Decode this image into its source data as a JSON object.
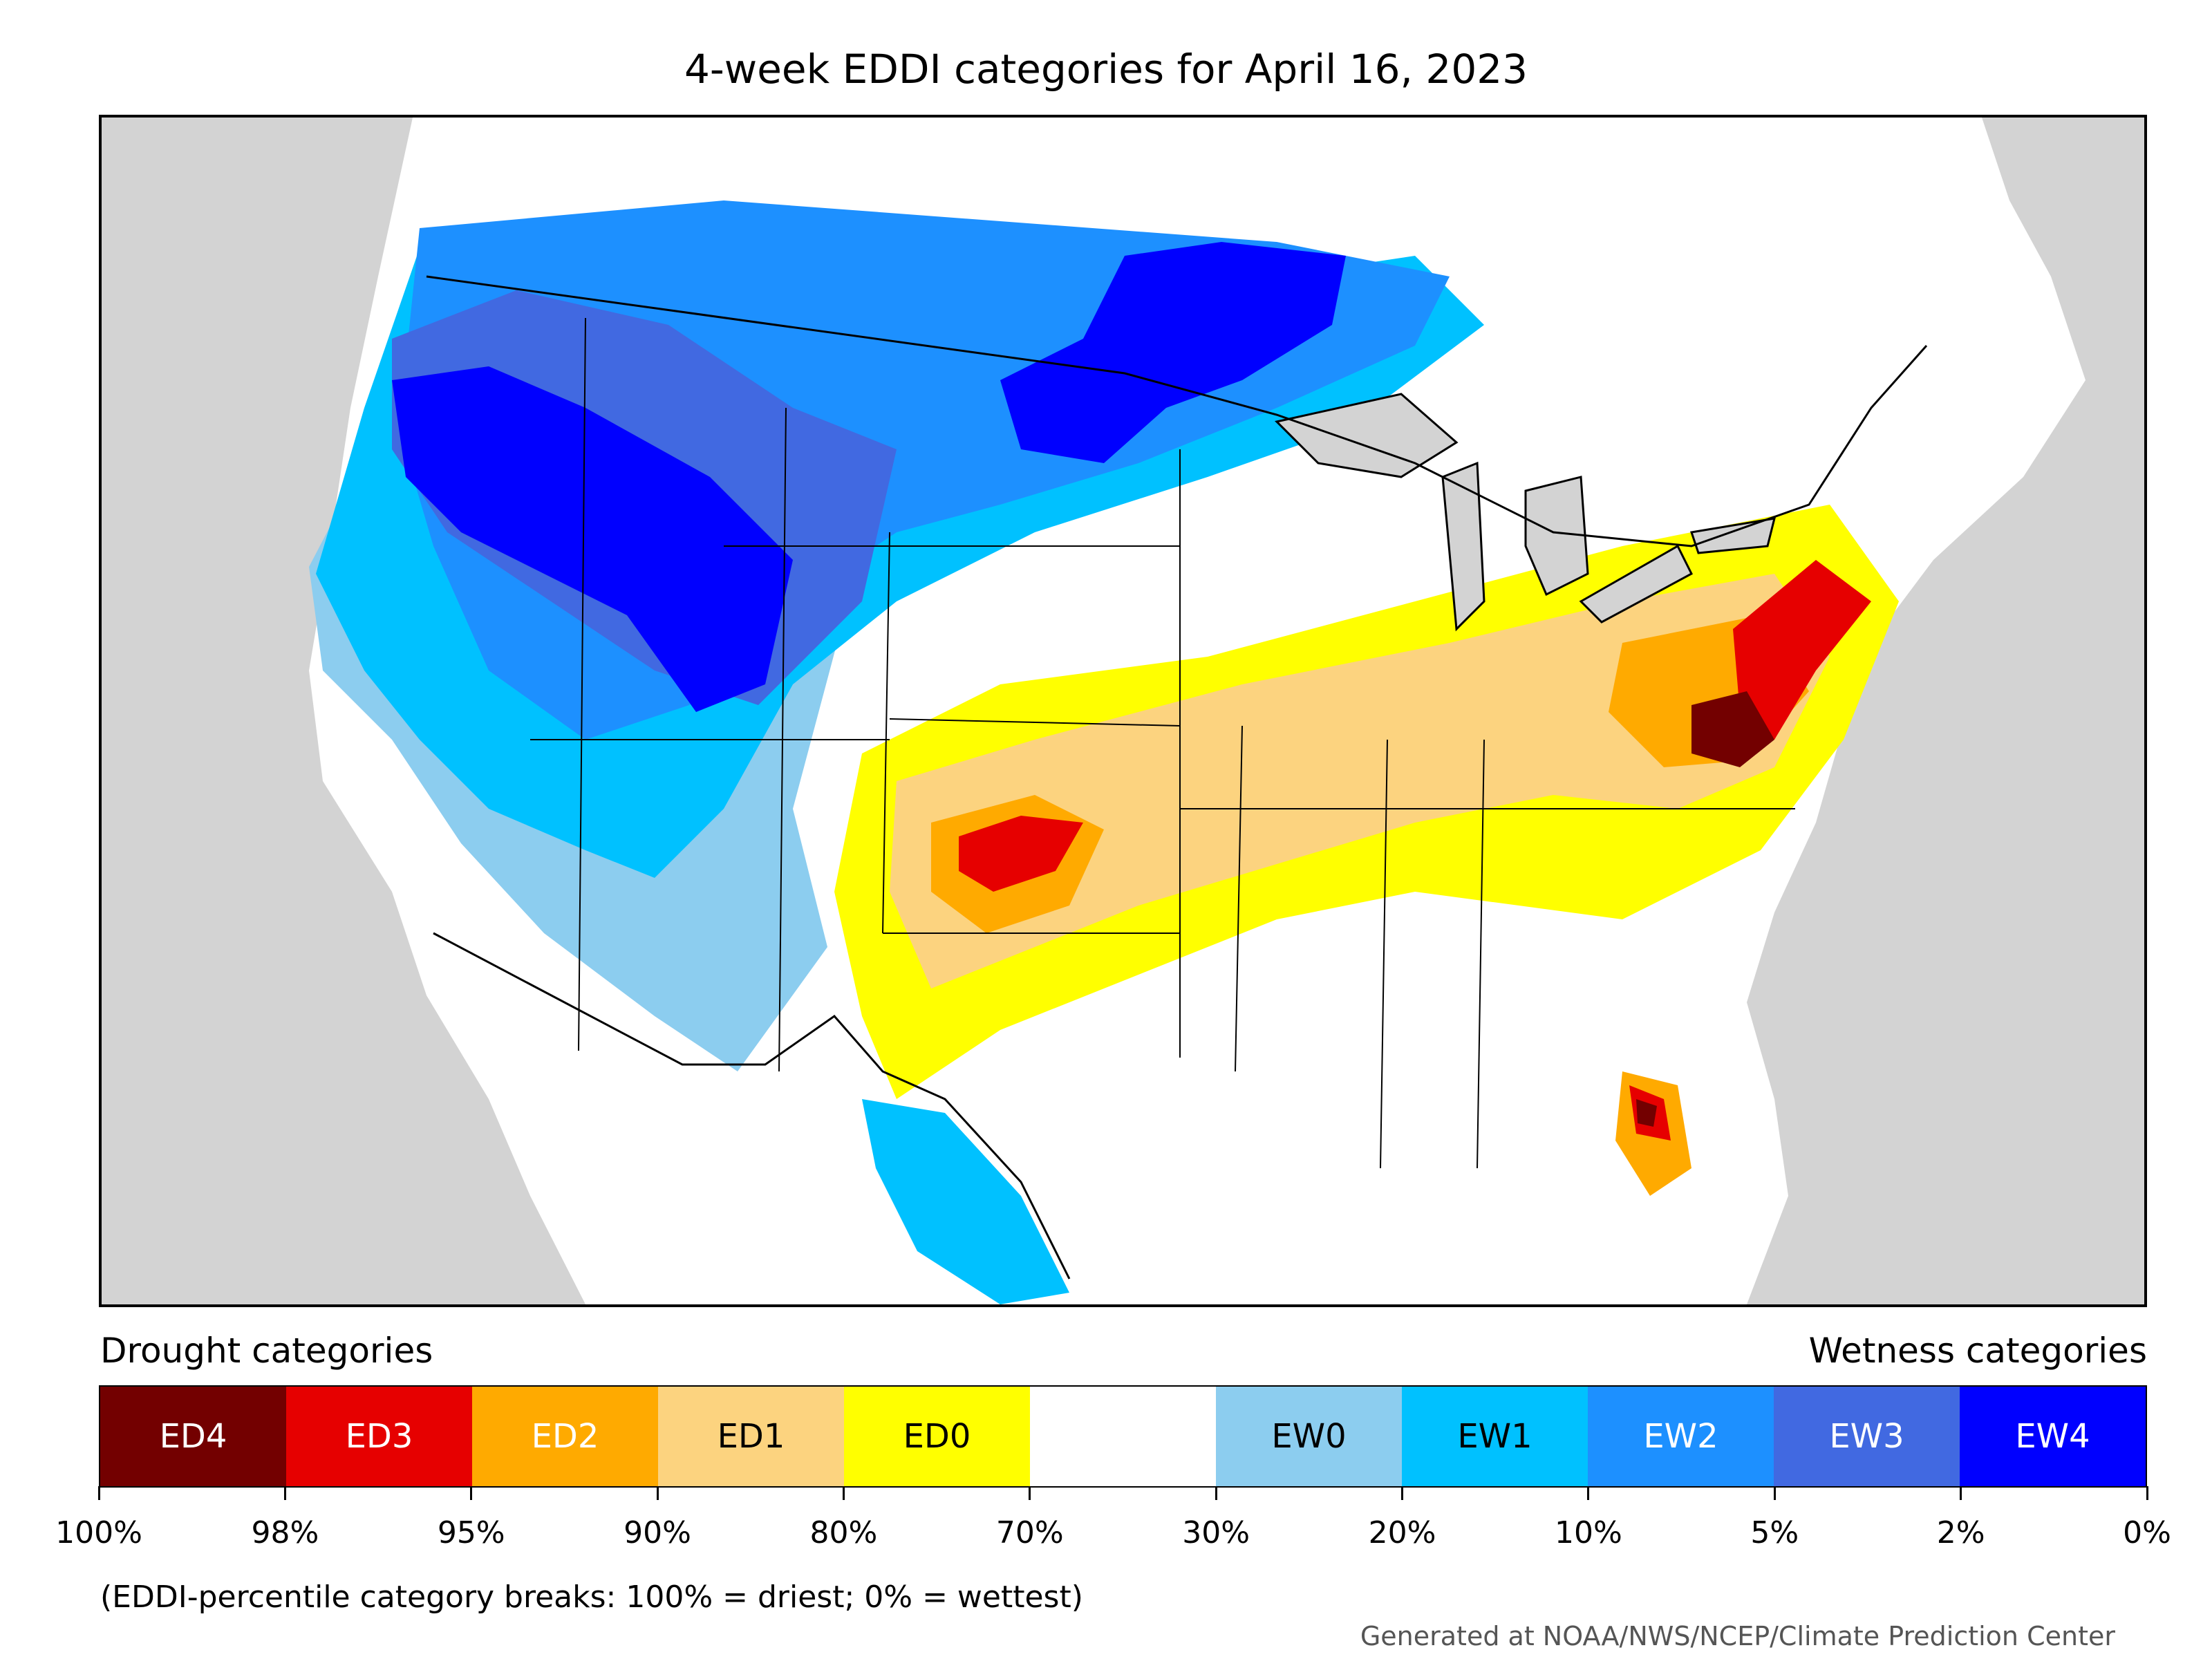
{
  "title": "4-week EDDI categories for April 16, 2023",
  "legend": {
    "left_heading": "Drought categories",
    "right_heading": "Wetness categories",
    "categories": [
      {
        "label": "ED4",
        "color": "#730000",
        "text_color": "#ffffff"
      },
      {
        "label": "ED3",
        "color": "#e60000",
        "text_color": "#ffffff"
      },
      {
        "label": "ED2",
        "color": "#ffaa00",
        "text_color": "#ffffff"
      },
      {
        "label": "ED1",
        "color": "#fcd37f",
        "text_color": "#000000"
      },
      {
        "label": "ED0",
        "color": "#ffff00",
        "text_color": "#000000"
      },
      {
        "label": "",
        "color": "#ffffff",
        "text_color": "#000000"
      },
      {
        "label": "EW0",
        "color": "#8ccdef",
        "text_color": "#000000"
      },
      {
        "label": "EW1",
        "color": "#00c1ff",
        "text_color": "#000000"
      },
      {
        "label": "EW2",
        "color": "#1d90ff",
        "text_color": "#ffffff"
      },
      {
        "label": "EW3",
        "color": "#4169e1",
        "text_color": "#ffffff"
      },
      {
        "label": "EW4",
        "color": "#0000ff",
        "text_color": "#ffffff"
      }
    ],
    "breaks": [
      "100%",
      "98%",
      "95%",
      "90%",
      "80%",
      "70%",
      "30%",
      "20%",
      "10%",
      "5%",
      "2%",
      "0%"
    ],
    "note": "(EDDI-percentile category breaks: 100% = driest; 0% = wettest)"
  },
  "credit": "Generated at NOAA/NWS/NCEP/Climate Prediction Center",
  "map": {
    "background_color": "#d3d3d3",
    "land_color": "#ffffff",
    "water_color": "#d3d3d3"
  }
}
